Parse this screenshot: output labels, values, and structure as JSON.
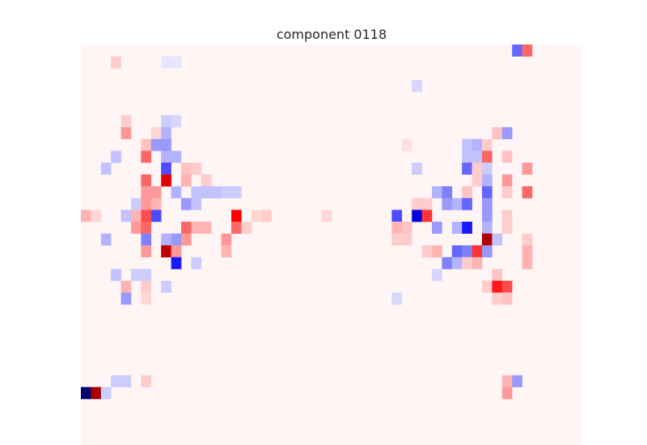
{
  "chart_data": {
    "type": "heatmap",
    "title": "component 0118",
    "rows": 35,
    "cols": 50,
    "colormap": "seismic",
    "grid": false,
    "axes_visible": false,
    "background_value": 0.02,
    "cells": [
      [
        0,
        43,
        -0.3
      ],
      [
        0,
        44,
        0.3
      ],
      [
        1,
        3,
        0.1
      ],
      [
        1,
        8,
        -0.05
      ],
      [
        1,
        9,
        -0.05
      ],
      [
        3,
        33,
        -0.08
      ],
      [
        6,
        4,
        0.1
      ],
      [
        6,
        8,
        -0.1
      ],
      [
        6,
        9,
        -0.08
      ],
      [
        7,
        4,
        0.2
      ],
      [
        7,
        7,
        0.08
      ],
      [
        7,
        8,
        -0.15
      ],
      [
        7,
        41,
        0.12
      ],
      [
        7,
        42,
        -0.2
      ],
      [
        8,
        6,
        0.12
      ],
      [
        8,
        7,
        -0.2
      ],
      [
        8,
        8,
        -0.2
      ],
      [
        8,
        32,
        0.06
      ],
      [
        8,
        38,
        -0.12
      ],
      [
        8,
        39,
        -0.15
      ],
      [
        8,
        40,
        0.1
      ],
      [
        9,
        3,
        -0.12
      ],
      [
        9,
        6,
        0.3
      ],
      [
        9,
        8,
        -0.15
      ],
      [
        9,
        9,
        -0.15
      ],
      [
        9,
        38,
        -0.12
      ],
      [
        9,
        39,
        -0.12
      ],
      [
        9,
        40,
        0.3
      ],
      [
        9,
        42,
        0.12
      ],
      [
        10,
        2,
        -0.12
      ],
      [
        10,
        8,
        -0.35
      ],
      [
        10,
        10,
        0.12
      ],
      [
        10,
        11,
        0.1
      ],
      [
        10,
        33,
        -0.1
      ],
      [
        10,
        38,
        -0.3
      ],
      [
        10,
        39,
        0.1
      ],
      [
        10,
        40,
        -0.1
      ],
      [
        10,
        44,
        0.2
      ],
      [
        11,
        6,
        0.3
      ],
      [
        11,
        8,
        0.6
      ],
      [
        11,
        10,
        0.15
      ],
      [
        11,
        12,
        0.1
      ],
      [
        11,
        39,
        0.1
      ],
      [
        11,
        40,
        -0.15
      ],
      [
        11,
        42,
        0.2
      ],
      [
        12,
        6,
        0.2
      ],
      [
        12,
        7,
        0.2
      ],
      [
        12,
        9,
        -0.15
      ],
      [
        12,
        11,
        -0.12
      ],
      [
        12,
        12,
        -0.12
      ],
      [
        12,
        13,
        -0.12
      ],
      [
        12,
        14,
        -0.1
      ],
      [
        12,
        15,
        -0.1
      ],
      [
        12,
        35,
        -0.15
      ],
      [
        12,
        36,
        -0.25
      ],
      [
        12,
        38,
        0.12
      ],
      [
        12,
        40,
        -0.3
      ],
      [
        12,
        42,
        0.1
      ],
      [
        12,
        44,
        0.3
      ],
      [
        13,
        5,
        -0.1
      ],
      [
        13,
        6,
        0.2
      ],
      [
        13,
        7,
        0.15
      ],
      [
        13,
        10,
        -0.2
      ],
      [
        13,
        11,
        -0.12
      ],
      [
        13,
        33,
        0.1
      ],
      [
        13,
        34,
        0.1
      ],
      [
        13,
        36,
        -0.2
      ],
      [
        13,
        37,
        -0.15
      ],
      [
        13,
        38,
        -0.3
      ],
      [
        13,
        40,
        -0.2
      ],
      [
        14,
        0,
        0.15
      ],
      [
        14,
        1,
        0.08
      ],
      [
        14,
        4,
        -0.12
      ],
      [
        14,
        5,
        0.15
      ],
      [
        14,
        6,
        0.35
      ],
      [
        14,
        7,
        -0.35
      ],
      [
        14,
        15,
        0.5
      ],
      [
        14,
        17,
        0.08
      ],
      [
        14,
        18,
        0.1
      ],
      [
        14,
        24,
        0.08
      ],
      [
        14,
        31,
        -0.35
      ],
      [
        14,
        33,
        -0.6
      ],
      [
        14,
        34,
        0.4
      ],
      [
        14,
        40,
        -0.2
      ],
      [
        14,
        42,
        0.1
      ],
      [
        15,
        5,
        0.2
      ],
      [
        15,
        6,
        0.3
      ],
      [
        15,
        10,
        0.3
      ],
      [
        15,
        11,
        0.15
      ],
      [
        15,
        12,
        0.15
      ],
      [
        15,
        15,
        0.3
      ],
      [
        15,
        16,
        0.1
      ],
      [
        15,
        31,
        0.15
      ],
      [
        15,
        32,
        0.12
      ],
      [
        15,
        35,
        -0.2
      ],
      [
        15,
        37,
        -0.15
      ],
      [
        15,
        38,
        -0.45
      ],
      [
        15,
        40,
        -0.15
      ],
      [
        15,
        42,
        0.1
      ],
      [
        16,
        2,
        -0.15
      ],
      [
        16,
        6,
        -0.25
      ],
      [
        16,
        8,
        -0.15
      ],
      [
        16,
        9,
        -0.2
      ],
      [
        16,
        10,
        0.2
      ],
      [
        16,
        14,
        0.2
      ],
      [
        16,
        31,
        0.1
      ],
      [
        16,
        32,
        0.1
      ],
      [
        16,
        40,
        0.8
      ],
      [
        16,
        41,
        -0.12
      ],
      [
        16,
        44,
        0.1
      ],
      [
        17,
        6,
        0.2
      ],
      [
        17,
        8,
        0.75
      ],
      [
        17,
        9,
        0.2
      ],
      [
        17,
        14,
        0.15
      ],
      [
        17,
        34,
        0.1
      ],
      [
        17,
        35,
        0.15
      ],
      [
        17,
        37,
        -0.3
      ],
      [
        17,
        38,
        -0.25
      ],
      [
        17,
        39,
        0.4
      ],
      [
        17,
        40,
        -0.2
      ],
      [
        17,
        44,
        0.15
      ],
      [
        18,
        9,
        -0.45
      ],
      [
        18,
        11,
        -0.1
      ],
      [
        18,
        36,
        -0.25
      ],
      [
        18,
        37,
        -0.15
      ],
      [
        18,
        38,
        0.1
      ],
      [
        18,
        39,
        0.15
      ],
      [
        18,
        44,
        0.15
      ],
      [
        19,
        3,
        -0.12
      ],
      [
        19,
        5,
        -0.1
      ],
      [
        19,
        6,
        -0.1
      ],
      [
        19,
        35,
        -0.08
      ],
      [
        19,
        41,
        0.12
      ],
      [
        20,
        4,
        0.15
      ],
      [
        20,
        6,
        0.1
      ],
      [
        20,
        8,
        -0.1
      ],
      [
        20,
        40,
        0.1
      ],
      [
        20,
        41,
        0.45
      ],
      [
        20,
        42,
        0.35
      ],
      [
        21,
        4,
        -0.2
      ],
      [
        21,
        6,
        0.08
      ],
      [
        21,
        31,
        -0.08
      ],
      [
        21,
        41,
        0.1
      ],
      [
        21,
        42,
        0.12
      ],
      [
        28,
        3,
        -0.1
      ],
      [
        28,
        4,
        -0.1
      ],
      [
        28,
        6,
        0.1
      ],
      [
        28,
        42,
        0.15
      ],
      [
        28,
        43,
        -0.2
      ],
      [
        29,
        0,
        -0.9
      ],
      [
        29,
        1,
        0.85
      ],
      [
        29,
        2,
        -0.1
      ],
      [
        29,
        42,
        0.2
      ]
    ]
  }
}
